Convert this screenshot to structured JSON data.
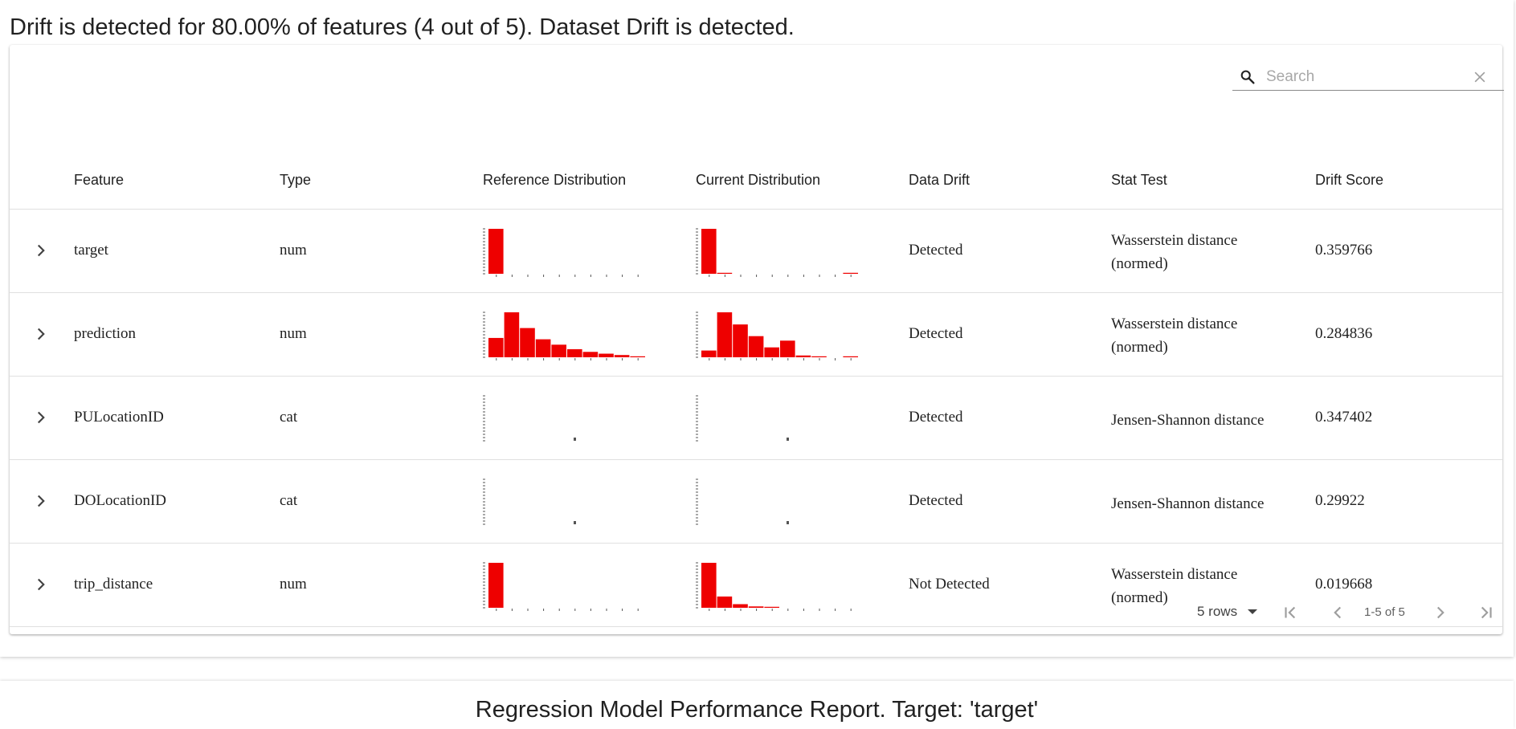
{
  "summary": "Drift is detected for 80.00% of features (4 out of 5). Dataset Drift is detected.",
  "search": {
    "placeholder": "Search",
    "value": ""
  },
  "columns": {
    "feature": "Feature",
    "type": "Type",
    "reference": "Reference Distribution",
    "current": "Current Distribution",
    "drift": "Data Drift",
    "stat_test": "Stat Test",
    "score": "Drift Score"
  },
  "rows": [
    {
      "feature": "target",
      "type": "num",
      "drift": "Detected",
      "stat_test": "Wasserstein distance (normed)",
      "score": "0.359766",
      "ref_hist": [
        1,
        0,
        0,
        0,
        0,
        0,
        0,
        0,
        0,
        0
      ],
      "cur_hist": [
        1,
        0.02,
        0,
        0,
        0,
        0,
        0,
        0,
        0,
        0.02
      ]
    },
    {
      "feature": "prediction",
      "type": "num",
      "drift": "Detected",
      "stat_test": "Wasserstein distance (normed)",
      "score": "0.284836",
      "ref_hist": [
        0.43,
        1,
        0.65,
        0.4,
        0.28,
        0.18,
        0.12,
        0.08,
        0.05,
        0.02
      ],
      "cur_hist": [
        0.15,
        1,
        0.73,
        0.47,
        0.22,
        0.37,
        0.04,
        0.02,
        0,
        0.02
      ]
    },
    {
      "feature": "PULocationID",
      "type": "cat",
      "drift": "Detected",
      "stat_test": "Jensen-Shannon distance",
      "score": "0.347402",
      "ref_hist": [],
      "cur_hist": []
    },
    {
      "feature": "DOLocationID",
      "type": "cat",
      "drift": "Detected",
      "stat_test": "Jensen-Shannon distance",
      "score": "0.29922",
      "ref_hist": [],
      "cur_hist": []
    },
    {
      "feature": "trip_distance",
      "type": "num",
      "drift": "Not Detected",
      "stat_test": "Wasserstein distance (normed)",
      "score": "0.019668",
      "ref_hist": [
        1,
        0,
        0,
        0,
        0,
        0,
        0,
        0,
        0,
        0
      ],
      "cur_hist": [
        1,
        0.25,
        0.08,
        0.03,
        0.02,
        0,
        0,
        0,
        0,
        0
      ]
    }
  ],
  "pagination": {
    "rows_label": "5 rows",
    "range": "1-5 of 5"
  },
  "next_section_title": "Regression Model Performance Report. Target: 'target'",
  "colors": {
    "bar": "#ee0000",
    "axis": "#555555"
  }
}
